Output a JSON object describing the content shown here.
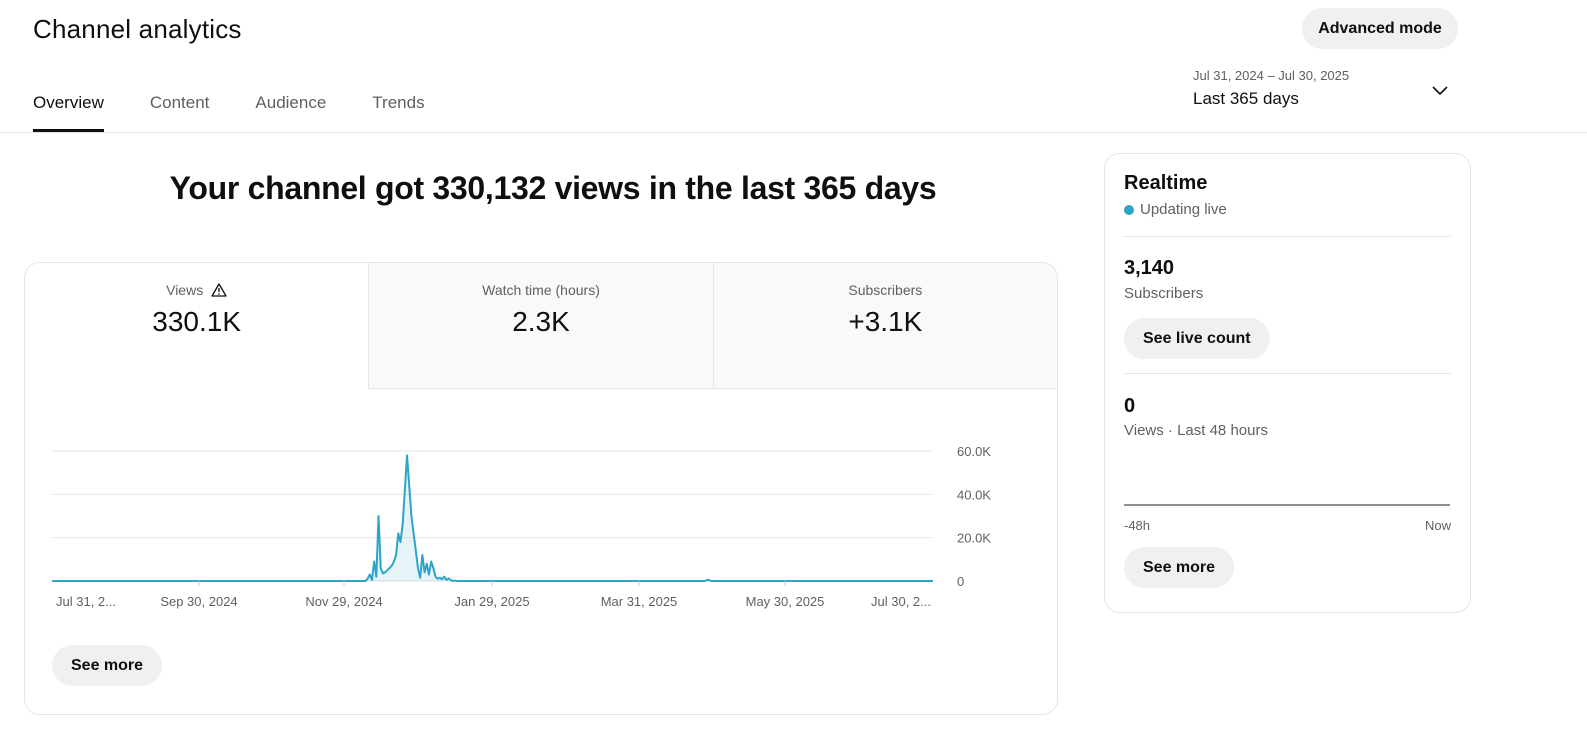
{
  "header": {
    "title": "Channel analytics",
    "advanced_mode": "Advanced mode",
    "tabs": [
      "Overview",
      "Content",
      "Audience",
      "Trends"
    ],
    "date_range": "Jul 31, 2024 – Jul 30, 2025",
    "date_label": "Last 365 days"
  },
  "headline": "Your channel got 330,132 views in the last 365 days",
  "metrics": [
    {
      "title": "Views",
      "value": "330.1K"
    },
    {
      "title": "Watch time (hours)",
      "value": "2.3K"
    },
    {
      "title": "Subscribers",
      "value": "+3.1K"
    }
  ],
  "chart_data": {
    "type": "area",
    "series": [
      {
        "values": [
          0,
          0,
          0,
          0,
          0,
          0,
          0,
          0,
          0,
          0,
          0,
          0,
          0,
          0,
          0,
          0,
          0,
          0,
          0,
          0,
          0,
          0,
          0,
          0,
          0,
          0,
          0,
          0,
          0,
          0,
          0,
          0,
          0,
          0,
          0,
          0,
          0,
          0,
          0,
          0,
          0,
          0,
          0,
          0,
          0,
          0,
          0,
          0,
          0,
          0,
          0,
          0,
          0,
          0,
          0,
          0,
          0,
          0,
          0,
          0,
          0,
          0,
          0,
          0,
          0,
          0,
          0,
          0,
          0,
          0,
          0,
          0,
          0,
          0,
          0,
          0,
          0,
          0,
          0,
          0,
          0,
          0,
          0,
          0,
          0,
          0,
          0,
          0,
          0,
          0,
          0,
          0,
          0,
          0,
          0,
          0,
          0,
          0,
          0,
          0,
          0,
          0,
          0,
          0,
          0,
          0,
          0,
          0,
          0,
          0,
          0,
          0,
          0,
          0,
          0,
          0,
          0,
          0,
          0,
          0,
          0,
          0,
          0,
          0,
          0,
          0,
          0,
          0,
          0,
          0,
          0,
          0,
          0,
          0,
          0,
          0,
          0,
          0,
          0,
          0,
          0,
          0,
          0,
          0,
          1000,
          3000,
          500,
          9000,
          2000,
          30000,
          6000,
          3500,
          4000,
          5000,
          6000,
          7000,
          9000,
          12000,
          22000,
          18000,
          26000,
          42000,
          58000,
          44000,
          30000,
          22000,
          14000,
          6000,
          1500,
          12000,
          4000,
          8000,
          3000,
          9000,
          6000,
          2000,
          1000,
          1500,
          800,
          2000,
          500,
          1200,
          300,
          0,
          200,
          0,
          0,
          0,
          0,
          0,
          0,
          0,
          0,
          0,
          0,
          0,
          0,
          0,
          0,
          0,
          0,
          0,
          0,
          0,
          0,
          0,
          0,
          0,
          0,
          0,
          0,
          0,
          0,
          0,
          0,
          0,
          0,
          0,
          0,
          0,
          0,
          0,
          0,
          0,
          0,
          0,
          0,
          0,
          0,
          0,
          0,
          0,
          0,
          0,
          0,
          0,
          0,
          0,
          0,
          0,
          0,
          0,
          0,
          0,
          0,
          0,
          0,
          0,
          0,
          0,
          0,
          0,
          0,
          0,
          0,
          0,
          0,
          0,
          0,
          0,
          0,
          0,
          0,
          0,
          0,
          0,
          0,
          0,
          0,
          0,
          0,
          0,
          0,
          0,
          0,
          0,
          0,
          0,
          0,
          0,
          0,
          0,
          0,
          0,
          0,
          0,
          0,
          0,
          0,
          0,
          0,
          0,
          0,
          0,
          0,
          0,
          0,
          0,
          0,
          600,
          300,
          0,
          0,
          0,
          0,
          0,
          0,
          0,
          0,
          0,
          0,
          0,
          0,
          0,
          0,
          0,
          0,
          0,
          0,
          0,
          0,
          0,
          0,
          0,
          0,
          0,
          0,
          0,
          0,
          0,
          0,
          0,
          0,
          0,
          0,
          0,
          0,
          0,
          0,
          0,
          0,
          0,
          0,
          0,
          0,
          0,
          0,
          0,
          0,
          0,
          0,
          0,
          0,
          0,
          0,
          0,
          0,
          0,
          0,
          0,
          0,
          0,
          0,
          0,
          0,
          0,
          0,
          0,
          0,
          0,
          0,
          0,
          0,
          0,
          0,
          0,
          0,
          0,
          0,
          0,
          0,
          0,
          0,
          0,
          0,
          0,
          0,
          0,
          0,
          0,
          0,
          0,
          0,
          0,
          0,
          0,
          0,
          0,
          0,
          0,
          0,
          0,
          0
        ]
      }
    ],
    "x_tick_labels": [
      "Jul 31, 2...",
      "Sep 30, 2024",
      "Nov 29, 2024",
      "Jan 29, 2025",
      "Mar 31, 2025",
      "May 30, 2025",
      "Jul 30, 2..."
    ],
    "y_tick_labels": [
      "60.0K",
      "40.0K",
      "20.0K",
      "0"
    ],
    "y_ticks": [
      60000,
      40000,
      20000,
      0
    ],
    "ylim": [
      0,
      60000
    ],
    "grid": true,
    "color": "#2ea4c8"
  },
  "see_more": "See more",
  "realtime": {
    "title": "Realtime",
    "status": "Updating live",
    "subscribers_value": "3,140",
    "subscribers_label": "Subscribers",
    "live_count_button": "See live count",
    "views_value": "0",
    "views_label": "Views · Last 48 hours",
    "axis_start": "-48h",
    "axis_end": "Now",
    "see_more": "See more"
  }
}
